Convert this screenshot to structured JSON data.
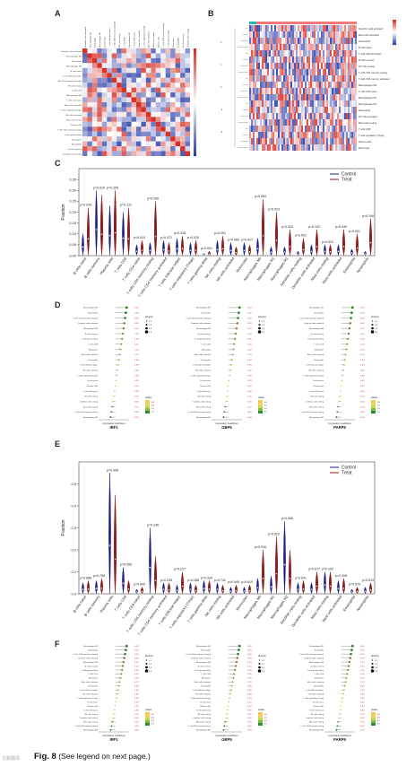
{
  "panels": {
    "a": "A",
    "b": "B",
    "c": "C",
    "d": "D",
    "e": "E",
    "f": "F"
  },
  "heatmap_a": {
    "rows": [
      "Dendritic cells activated",
      "Macrophages M1",
      "Neutrophils",
      "Macrophages M0",
      "B cells naive",
      "T cells follicular helper",
      "T cells CD4 memory activated",
      "NK cells resting",
      "T cells CD8",
      "Macrophages M2",
      "T cells CD4 naive",
      "Mast cells activated",
      "T cells regulatory (Tregs)",
      "NK cells activated",
      "Mast cells resting",
      "Plasma cells",
      "T cells CD4 memory resting",
      "T cells gamma delta",
      "Monocytes",
      "Eosinophils",
      "B cells memory",
      "Dendritic cells resting"
    ]
  },
  "heatmap_b": {
    "rows": [
      "Dendritic cells activated",
      "Mast cells activated",
      "Neutrophils",
      "B cells naive",
      "T cells follicular helper",
      "B cells memory",
      "NK cells resting",
      "T cells CD4 memory resting",
      "T cells CD4 memory activated",
      "Macrophages M0",
      "T cells CD4 naive",
      "Macrophages M1",
      "Macrophages M2",
      "Eosinophils",
      "NK cells activated",
      "Mast cells resting",
      "T cells CD8",
      "T cells regulatory (Tregs)",
      "Plasma cells",
      "Monocytes"
    ],
    "legend_title": "Type",
    "legend_items": [
      "Control",
      "Treat"
    ],
    "colorbar": [
      "2",
      "1",
      "0",
      "-1",
      "-2"
    ]
  },
  "chart_data": [
    {
      "type": "violin",
      "panel": "C",
      "ylabel": "Fraction",
      "ylim": [
        0,
        0.4
      ],
      "yticks": [
        "0.00",
        "0.05",
        "0.10",
        "0.15",
        "0.20",
        "0.25",
        "0.30",
        "0.35"
      ],
      "legend": [
        "Control",
        "Treat"
      ],
      "categories": [
        "B cells naive",
        "B cells memory",
        "Plasma cells",
        "T cells CD8",
        "T cells CD4 naive",
        "T cells CD4 memory resting",
        "T cells CD4 memory activated",
        "T cells follicular helper",
        "T cells regulatory (Tregs)",
        "T cells gamma delta",
        "NK cells resting",
        "NK cells activated",
        "Monocytes",
        "Macrophages M0",
        "Macrophages M1",
        "Macrophages M2",
        "Dendritic cells resting",
        "Dendritic cells activated",
        "Mast cells resting",
        "Mast cells activated",
        "Eosinophils",
        "Neutrophils"
      ],
      "pvalues": [
        "p=0.239",
        "p=0.019",
        "p=0.205",
        "p=0.131",
        "p=0.010",
        "p=0.290",
        "p=0.471",
        "p=0.418",
        "p=0.029",
        "p=0.001",
        "p=0.251",
        "p=0.460",
        "p=0.417",
        "p=0.084",
        "p=0.023",
        "p=0.324",
        "p=0.001",
        "p=0.102",
        "p=0.523",
        "p=0.440",
        "p=0.001",
        "p=0.106"
      ],
      "control_max": [
        0.1,
        0.3,
        0.23,
        0.2,
        0.05,
        0.06,
        0.07,
        0.08,
        0.06,
        0.01,
        0.07,
        0.06,
        0.06,
        0.08,
        0.04,
        0.04,
        0.02,
        0.05,
        0.05,
        0.05,
        0.03,
        0.02
      ],
      "treat_max": [
        0.22,
        0.28,
        0.3,
        0.22,
        0.07,
        0.25,
        0.06,
        0.09,
        0.07,
        0.02,
        0.09,
        0.04,
        0.05,
        0.26,
        0.2,
        0.12,
        0.08,
        0.12,
        0.05,
        0.12,
        0.1,
        0.17
      ]
    },
    {
      "type": "violin",
      "panel": "E",
      "ylabel": "Fraction",
      "ylim": [
        0,
        0.6
      ],
      "yticks": [
        "0.0",
        "0.1",
        "0.2",
        "0.3",
        "0.4",
        "0.5"
      ],
      "legend": [
        "Control",
        "Treat"
      ],
      "categories": [
        "B cells naive",
        "B cells memory",
        "Plasma cells",
        "T cells CD8",
        "T cells CD4 naive",
        "T cells CD4 memory resting",
        "T cells CD4 memory activated",
        "T cells follicular helper",
        "T cells regulatory (Tregs)",
        "T cells gamma delta",
        "NK cells resting",
        "NK cells activated",
        "Monocytes",
        "Macrophages M0",
        "Macrophages M1",
        "Macrophages M2",
        "Dendritic cells resting",
        "Dendritic cells activated",
        "Mast cells resting",
        "Mast cells activated",
        "Eosinophils",
        "Neutrophils"
      ],
      "pvalues": [
        "p=0.688",
        "p=0.798",
        "p=0.008",
        "p=0.055",
        "p=0.840",
        "p=0.146",
        "p=0.235",
        "p=0.217",
        "p=0.268",
        "p=0.334",
        "p=0.742",
        "p=0.945",
        "p=0.610",
        "p=0.016",
        "p=0.022",
        "p=0.008",
        "p=0.641",
        "p=0.677",
        "p=0.102",
        "p=0.308",
        "p=0.575",
        "p=0.013"
      ],
      "control_max": [
        0.05,
        0.06,
        0.55,
        0.12,
        0.02,
        0.3,
        0.05,
        0.04,
        0.05,
        0.06,
        0.05,
        0.03,
        0.03,
        0.07,
        0.08,
        0.33,
        0.05,
        0.05,
        0.1,
        0.06,
        0.02,
        0.03
      ],
      "treat_max": [
        0.06,
        0.07,
        0.45,
        0.06,
        0.03,
        0.17,
        0.05,
        0.1,
        0.04,
        0.06,
        0.04,
        0.04,
        0.04,
        0.2,
        0.26,
        0.2,
        0.06,
        0.1,
        0.1,
        0.07,
        0.03,
        0.05
      ]
    }
  ],
  "lollipops": {
    "D": [
      {
        "gene": "IRF1",
        "xlabel": "Correlation Coefficient"
      },
      {
        "gene": "GBP5",
        "xlabel": "Correlation Coefficient"
      },
      {
        "gene": "PARP9",
        "xlabel": "Correlation Coefficient"
      }
    ],
    "F": [
      {
        "gene": "IRF1",
        "xlabel": "Correlation Coefficient"
      },
      {
        "gene": "GBP5",
        "xlabel": "Correlation Coefficient"
      },
      {
        "gene": "PARP9",
        "xlabel": "Correlation Coefficient"
      }
    ],
    "size_legend_title": "abs(cor)",
    "size_legend": [
      "0.1",
      "0.2",
      "0.3",
      "0.4"
    ],
    "pvalue_title": "pvalue",
    "pvalue_ticks": [
      "0.8",
      "0.6",
      "0.4",
      "0.2"
    ],
    "row_labels": [
      "Macrophages M1",
      "Neutrophils",
      "T cells CD4 memory activated",
      "Dendritic cells activated",
      "Macrophages M0",
      "B cells memory",
      "T cells gamma delta",
      "T cells CD8",
      "Monocytes",
      "Mast cells activated",
      "Eosinophils",
      "T cells follicular helper",
      "NK cells activated",
      "T cells regulatory (Tregs)",
      "B cells naive",
      "Plasma cells",
      "T cells CD4 naive",
      "NK cells resting",
      "Dendritic cells resting",
      "Mast cells resting",
      "T cells CD4 memory resting",
      "Macrophages M2"
    ]
  },
  "caption": {
    "label": "Fig. 8",
    "text": "(See legend on next page.)"
  },
  "watermark": "文献翻译",
  "colors": {
    "control": "#1a1a8c",
    "treat": "#8b1a1a",
    "heat_red": "#d73027",
    "heat_blue": "#2c3ea8",
    "lolli_green": "#1a7f1a"
  }
}
